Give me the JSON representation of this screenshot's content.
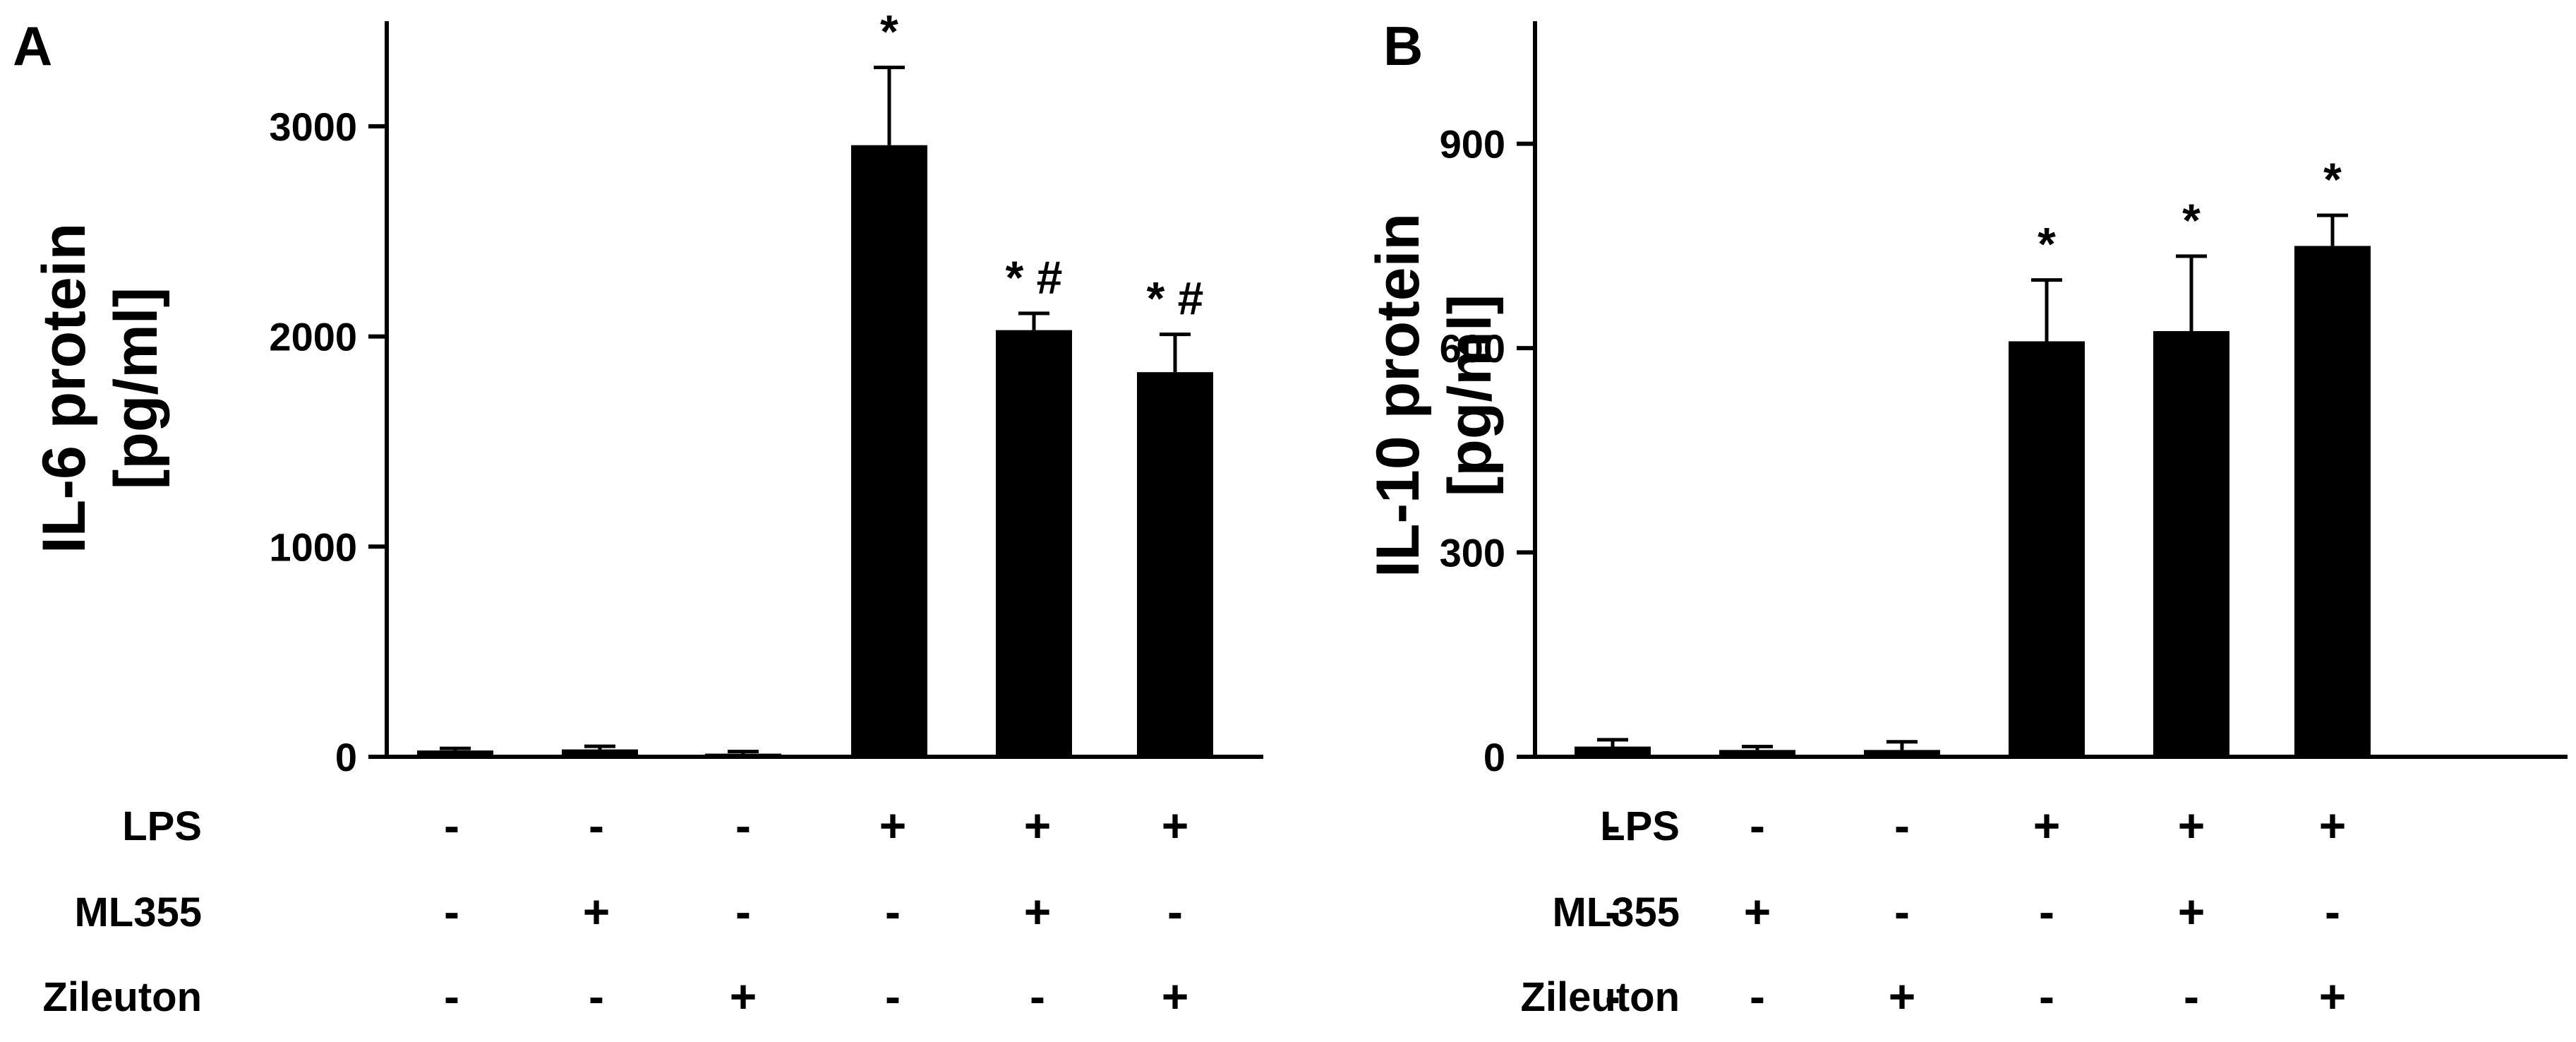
{
  "chart_data": [
    {
      "type": "bar",
      "panel": "A",
      "ylabel_lines": [
        "IL-6 protein",
        "[pg/ml]"
      ],
      "yticks": [
        0,
        1000,
        2000,
        3000
      ],
      "ylim": [
        0,
        3500
      ],
      "values": [
        30,
        35,
        15,
        2910,
        2030,
        1830
      ],
      "errors": [
        10,
        15,
        10,
        370,
        80,
        180
      ],
      "annotations": [
        "",
        "",
        "",
        "*",
        "* #",
        "* #"
      ],
      "conditions": [
        {
          "label": "LPS",
          "signs": [
            "-",
            "-",
            "-",
            "+",
            "+",
            "+"
          ]
        },
        {
          "label": "ML355",
          "signs": [
            "-",
            "+",
            "-",
            "-",
            "+",
            "-"
          ]
        },
        {
          "label": "Zileuton",
          "signs": [
            "-",
            "-",
            "+",
            "-",
            "-",
            "+"
          ]
        }
      ],
      "bar_color": "#000000",
      "grid": false
    },
    {
      "type": "bar",
      "panel": "B",
      "ylabel_lines": [
        "IL-10 protein",
        "[pg/ml]"
      ],
      "yticks": [
        0,
        300,
        600,
        900
      ],
      "ylim": [
        0,
        1080
      ],
      "values": [
        15,
        10,
        10,
        610,
        625,
        750
      ],
      "errors": [
        10,
        5,
        12,
        90,
        110,
        45
      ],
      "annotations": [
        "",
        "",
        "",
        "*",
        "*",
        "*"
      ],
      "conditions": [
        {
          "label": "LPS",
          "signs": [
            "-",
            "-",
            "-",
            "+",
            "+",
            "+"
          ]
        },
        {
          "label": "ML355",
          "signs": [
            "-",
            "+",
            "-",
            "-",
            "+",
            "-"
          ]
        },
        {
          "label": "Zileuton",
          "signs": [
            "-",
            "-",
            "+",
            "-",
            "-",
            "+"
          ]
        }
      ],
      "bar_color": "#000000",
      "grid": false
    }
  ]
}
